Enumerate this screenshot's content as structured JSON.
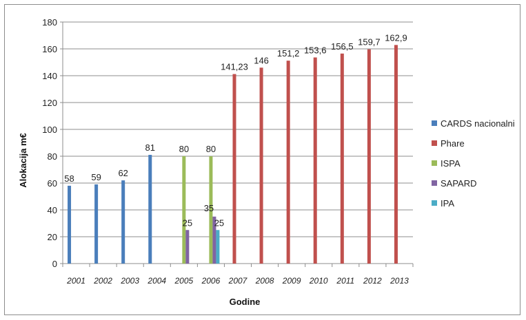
{
  "chart_data": {
    "type": "bar",
    "title": "",
    "xlabel": "Godine",
    "ylabel": "Alokacija m€",
    "ylim": [
      0,
      180
    ],
    "ytick_step": 20,
    "grid": "horizontal",
    "legend_position": "right",
    "categories": [
      "2001",
      "2002",
      "2003",
      "2004",
      "2005",
      "2006",
      "2007",
      "2008",
      "2009",
      "2010",
      "2011",
      "2012",
      "2013"
    ],
    "series": [
      {
        "name": "CARDS nacionalni",
        "color": "#4a7ebb",
        "values": [
          58,
          59,
          62,
          81,
          null,
          null,
          null,
          null,
          null,
          null,
          null,
          null,
          null
        ],
        "labels": [
          "58",
          "59",
          "62",
          "81",
          "",
          "",
          "",
          "",
          "",
          "",
          "",
          "",
          ""
        ]
      },
      {
        "name": "Phare",
        "color": "#c0504d",
        "values": [
          null,
          null,
          null,
          null,
          null,
          null,
          141.23,
          146,
          151.2,
          153.6,
          156.5,
          159.7,
          162.9
        ],
        "labels": [
          "",
          "",
          "",
          "",
          "",
          "",
          "141,23",
          "146",
          "151,2",
          "153,6",
          "156,5",
          "159,7",
          "162,9"
        ]
      },
      {
        "name": "ISPA",
        "color": "#9bbb59",
        "values": [
          null,
          null,
          null,
          null,
          80,
          80,
          null,
          null,
          null,
          null,
          null,
          null,
          null
        ],
        "labels": [
          "",
          "",
          "",
          "",
          "80",
          "80",
          "",
          "",
          "",
          "",
          "",
          "",
          ""
        ]
      },
      {
        "name": "SAPARD",
        "color": "#8064a2",
        "values": [
          null,
          null,
          null,
          null,
          25,
          35,
          null,
          null,
          null,
          null,
          null,
          null,
          null
        ],
        "labels": [
          "",
          "",
          "",
          "",
          "25",
          "35",
          "",
          "",
          "",
          "",
          "",
          "",
          ""
        ]
      },
      {
        "name": "IPA",
        "color": "#4bacc6",
        "values": [
          null,
          null,
          null,
          null,
          null,
          25,
          null,
          null,
          null,
          null,
          null,
          null,
          null
        ],
        "labels": [
          "",
          "",
          "",
          "",
          "",
          "25",
          "",
          "",
          "",
          "",
          "",
          "",
          ""
        ]
      }
    ]
  }
}
